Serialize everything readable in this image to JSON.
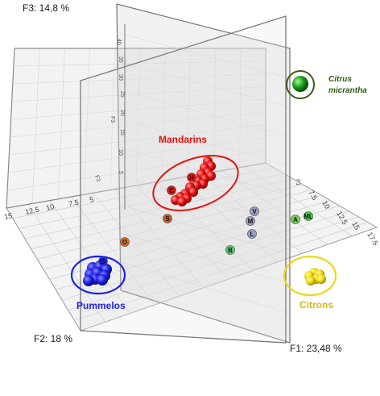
{
  "chart_data": {
    "type": "scatter",
    "subtype": "3d-scatter",
    "axes": {
      "f1_label": "F1: 23,48 %",
      "f2_label": "F2: 18 %",
      "f3_label": "F3: 14,8 %",
      "f1_ticks": [
        "7.5",
        "10",
        "12.5",
        "15",
        "17.5"
      ],
      "f2_ticks": [
        "15",
        "12.5",
        "10",
        "7.5",
        "5"
      ],
      "f3_ticks": [
        "5",
        "10",
        "15",
        "20",
        "25",
        "30",
        "35",
        "40"
      ],
      "f1_name": "F1",
      "f2_name": "F2",
      "f3_name": "F3"
    },
    "grid": true,
    "groups": [
      {
        "name": "Mandarins",
        "color": "#e81010",
        "ring_color": "#e81010"
      },
      {
        "name": "Pummelos",
        "color": "#1e22e6",
        "ring_color": "#1e22e6"
      },
      {
        "name": "Citrons",
        "color": "#f2dd10",
        "ring_color": "#e8d81a"
      },
      {
        "name_line1": "Citrus",
        "name_line2": "micrantha",
        "color": "#1a8c1a",
        "ring_color": "#3d5a18"
      }
    ],
    "labeled_points": [
      {
        "label": "H",
        "color": "#e81010"
      },
      {
        "label": "C",
        "color": "#e81010"
      },
      {
        "label": "S",
        "color": "#d05a28"
      },
      {
        "label": "O",
        "color": "#e0702a"
      },
      {
        "label": "G",
        "color": "#2020e0"
      },
      {
        "label": "V",
        "color": "#9aa0c8"
      },
      {
        "label": "M",
        "color": "#9aa0c8"
      },
      {
        "label": "L",
        "color": "#9aa0c8"
      },
      {
        "label": "B",
        "color": "#50d070"
      },
      {
        "label": "A",
        "color": "#70d850"
      },
      {
        "label": "ML",
        "color": "#38d838"
      }
    ]
  }
}
